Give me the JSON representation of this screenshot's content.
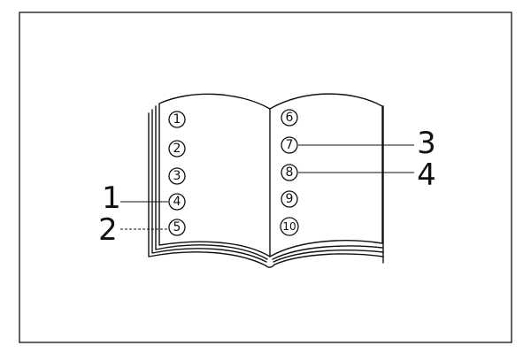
{
  "page_markers": {
    "left": [
      "1",
      "2",
      "3",
      "4",
      "5"
    ],
    "right": [
      "6",
      "7",
      "8",
      "9",
      "10"
    ]
  },
  "callouts": [
    "1",
    "2",
    "3",
    "4"
  ]
}
